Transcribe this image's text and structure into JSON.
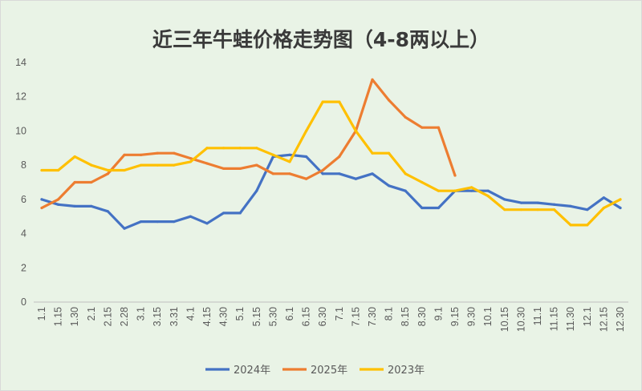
{
  "chart_data": {
    "type": "line",
    "title": "近三年牛蛙价格走势图（4-8两以上）",
    "xlabel": "",
    "ylabel": "",
    "ylim": [
      0,
      14
    ],
    "yticks": [
      0,
      2,
      4,
      6,
      8,
      10,
      12,
      14
    ],
    "grid": false,
    "legend_position": "bottom",
    "x": [
      "1.1",
      "1.15",
      "1.30",
      "2.1",
      "2.15",
      "2.28",
      "3.1",
      "3.15",
      "3.31",
      "4.1",
      "4.15",
      "4.30",
      "5.1",
      "5.15",
      "5.30",
      "6.1",
      "6.15",
      "6.30",
      "7.1",
      "7.15",
      "7.30",
      "8.1",
      "8.15",
      "8.30",
      "9.1",
      "9.15",
      "9.30",
      "10.1",
      "10.15",
      "10.30",
      "11.1",
      "11.15",
      "11.30",
      "12.1",
      "12.15",
      "12.30"
    ],
    "series": [
      {
        "name": "2024年",
        "color": "#4472c4",
        "values": [
          6.0,
          5.7,
          5.6,
          5.6,
          5.3,
          4.3,
          4.7,
          4.7,
          4.7,
          5.0,
          4.6,
          5.2,
          5.2,
          6.5,
          8.5,
          8.6,
          8.5,
          7.5,
          7.5,
          7.2,
          7.5,
          6.8,
          6.5,
          5.5,
          5.5,
          6.5,
          6.5,
          6.5,
          6.0,
          5.8,
          5.8,
          5.7,
          5.6,
          5.4,
          6.1,
          5.5
        ]
      },
      {
        "name": "2025年",
        "color": "#ed7d31",
        "values": [
          5.5,
          6.0,
          7.0,
          7.0,
          7.5,
          8.6,
          8.6,
          8.7,
          8.7,
          8.4,
          8.1,
          7.8,
          7.8,
          8.0,
          7.5,
          7.5,
          7.2,
          7.7,
          8.5,
          10.0,
          13.0,
          11.8,
          10.8,
          10.2,
          10.2,
          7.4,
          null,
          null,
          null,
          null,
          null,
          null,
          null,
          null,
          null,
          null
        ]
      },
      {
        "name": "2023年",
        "color": "#ffc000",
        "values": [
          7.7,
          7.7,
          8.5,
          8.0,
          7.7,
          7.7,
          8.0,
          8.0,
          8.0,
          8.2,
          9.0,
          9.0,
          9.0,
          9.0,
          8.6,
          8.2,
          10.0,
          11.7,
          11.7,
          10.0,
          8.7,
          8.7,
          7.5,
          7.0,
          6.5,
          6.5,
          6.7,
          6.2,
          5.4,
          5.4,
          5.4,
          5.4,
          4.5,
          4.5,
          5.5,
          6.0
        ]
      }
    ]
  }
}
